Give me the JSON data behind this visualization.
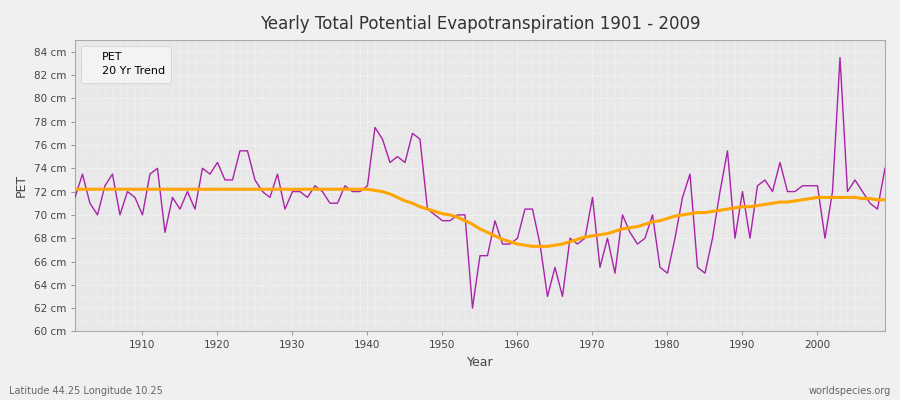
{
  "title": "Yearly Total Potential Evapotranspiration 1901 - 2009",
  "xlabel": "Year",
  "ylabel": "PET",
  "subtitle": "Latitude 44.25 Longitude 10.25",
  "watermark": "worldspecies.org",
  "fig_bg_color": "#f0f0f0",
  "plot_bg_color": "#e8e8e8",
  "pet_color": "#aa22aa",
  "trend_color": "#ffa500",
  "grid_color": "#ffffff",
  "ylim": [
    60,
    85
  ],
  "xlim": [
    1901,
    2009
  ],
  "ytick_step": 2,
  "years": [
    1901,
    1902,
    1903,
    1904,
    1905,
    1906,
    1907,
    1908,
    1909,
    1910,
    1911,
    1912,
    1913,
    1914,
    1915,
    1916,
    1917,
    1918,
    1919,
    1920,
    1921,
    1922,
    1923,
    1924,
    1925,
    1926,
    1927,
    1928,
    1929,
    1930,
    1931,
    1932,
    1933,
    1934,
    1935,
    1936,
    1937,
    1938,
    1939,
    1940,
    1941,
    1942,
    1943,
    1944,
    1945,
    1946,
    1947,
    1948,
    1949,
    1950,
    1951,
    1952,
    1953,
    1954,
    1955,
    1956,
    1957,
    1958,
    1959,
    1960,
    1961,
    1962,
    1963,
    1964,
    1965,
    1966,
    1967,
    1968,
    1969,
    1970,
    1971,
    1972,
    1973,
    1974,
    1975,
    1976,
    1977,
    1978,
    1979,
    1980,
    1981,
    1982,
    1983,
    1984,
    1985,
    1986,
    1987,
    1988,
    1989,
    1990,
    1991,
    1992,
    1993,
    1994,
    1995,
    1996,
    1997,
    1998,
    1999,
    2000,
    2001,
    2002,
    2003,
    2004,
    2005,
    2006,
    2007,
    2008,
    2009
  ],
  "pet_values": [
    71.5,
    73.5,
    71.0,
    70.0,
    72.5,
    73.5,
    70.0,
    72.0,
    71.5,
    70.0,
    73.5,
    74.0,
    68.5,
    71.5,
    70.5,
    72.0,
    70.5,
    74.0,
    73.5,
    74.5,
    73.0,
    73.0,
    75.5,
    75.5,
    73.0,
    72.0,
    71.5,
    73.5,
    70.5,
    72.0,
    72.0,
    71.5,
    72.5,
    72.0,
    71.0,
    71.0,
    72.5,
    72.0,
    72.0,
    72.5,
    77.5,
    76.5,
    74.5,
    75.0,
    74.5,
    77.0,
    76.5,
    70.5,
    70.0,
    69.5,
    69.5,
    70.0,
    70.0,
    62.0,
    66.5,
    66.5,
    69.5,
    67.5,
    67.5,
    68.0,
    70.5,
    70.5,
    67.5,
    63.0,
    65.5,
    63.0,
    68.0,
    67.5,
    68.0,
    71.5,
    65.5,
    68.0,
    65.0,
    70.0,
    68.5,
    67.5,
    68.0,
    70.0,
    65.5,
    65.0,
    68.0,
    71.5,
    73.5,
    65.5,
    65.0,
    68.0,
    72.0,
    75.5,
    68.0,
    72.0,
    68.0,
    72.5,
    73.0,
    72.0,
    74.5,
    72.0,
    72.0,
    72.5,
    72.5,
    72.5,
    68.0,
    72.0,
    83.5,
    72.0,
    73.0,
    72.0,
    71.0,
    70.5,
    74.0
  ],
  "trend_values": [
    72.2,
    72.2,
    72.2,
    72.2,
    72.2,
    72.2,
    72.2,
    72.2,
    72.2,
    72.2,
    72.2,
    72.2,
    72.2,
    72.2,
    72.2,
    72.2,
    72.2,
    72.2,
    72.2,
    72.2,
    72.2,
    72.2,
    72.2,
    72.2,
    72.2,
    72.2,
    72.2,
    72.2,
    72.2,
    72.2,
    72.2,
    72.2,
    72.2,
    72.2,
    72.2,
    72.2,
    72.2,
    72.2,
    72.2,
    72.2,
    72.1,
    72.0,
    71.8,
    71.5,
    71.2,
    71.0,
    70.7,
    70.5,
    70.3,
    70.1,
    70.0,
    69.8,
    69.5,
    69.2,
    68.8,
    68.5,
    68.2,
    67.9,
    67.7,
    67.5,
    67.4,
    67.3,
    67.3,
    67.3,
    67.4,
    67.5,
    67.7,
    67.9,
    68.1,
    68.2,
    68.3,
    68.4,
    68.6,
    68.8,
    68.9,
    69.0,
    69.2,
    69.4,
    69.5,
    69.7,
    69.9,
    70.0,
    70.1,
    70.2,
    70.2,
    70.3,
    70.4,
    70.5,
    70.6,
    70.7,
    70.7,
    70.8,
    70.9,
    71.0,
    71.1,
    71.1,
    71.2,
    71.3,
    71.4,
    71.5,
    71.5,
    71.5,
    71.5,
    71.5,
    71.5,
    71.4,
    71.4,
    71.3,
    71.3
  ]
}
